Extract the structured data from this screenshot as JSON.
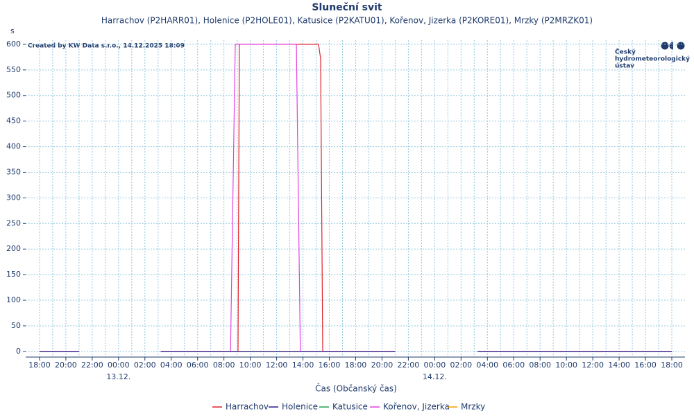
{
  "chart_data": {
    "type": "line",
    "title": "Sluneční svit",
    "subtitle": "Harrachov (P2HARR01), Holenice (P2HOLE01), Katusice (P2KATU01), Kořenov, Jizerka (P2KORE01), Mrzky (P2MRZK01)",
    "y_label": "s",
    "x_label": "Čas (Občanský čas)",
    "credit": "Created by KW Data s.r.o., 14.12.2025 18:09",
    "logo": [
      "Český",
      "hydrometeorologický",
      "ústav"
    ],
    "x": [
      0,
      3,
      6,
      9.2,
      14.5,
      14.86,
      15.07,
      15.17,
      19.5,
      19.8,
      21.18,
      21.34,
      21.5,
      27,
      30,
      33.25,
      48
    ],
    "series": [
      {
        "name": "Harrachov",
        "color": "#e0202a",
        "values": [
          0,
          0,
          null,
          0,
          0,
          0,
          0,
          600,
          600,
          600,
          600,
          572,
          0,
          0,
          null,
          0,
          0
        ]
      },
      {
        "name": "Holenice",
        "color": "#2a1a8c",
        "values": [
          0,
          0,
          null,
          0,
          0,
          0,
          0,
          0,
          0,
          0,
          0,
          0,
          0,
          0,
          null,
          0,
          0
        ]
      },
      {
        "name": "Katusice",
        "color": "#20a050",
        "values": [
          0,
          0,
          null,
          0,
          0,
          0,
          0,
          0,
          0,
          0,
          0,
          0,
          0,
          0,
          null,
          0,
          0
        ]
      },
      {
        "name": "Kořenov, Jizerka",
        "color": "#e040e0",
        "values": [
          0,
          0,
          null,
          0,
          0,
          600,
          600,
          600,
          600,
          0,
          0,
          0,
          0,
          0,
          null,
          0,
          0
        ]
      },
      {
        "name": "Mrzky",
        "color": "#f0a000",
        "values": [
          0,
          0,
          null,
          0,
          0,
          0,
          0,
          0,
          0,
          0,
          0,
          0,
          0,
          0,
          null,
          0,
          0
        ]
      }
    ],
    "xlim": [
      -1.05,
      49
    ],
    "xticks": [
      {
        "value": 0,
        "label": "18:00"
      },
      {
        "value": 2,
        "label": "20:00"
      },
      {
        "value": 4,
        "label": "22:00"
      },
      {
        "value": 6,
        "label": "00:00"
      },
      {
        "value": 8,
        "label": "02:00"
      },
      {
        "value": 10,
        "label": "04:00"
      },
      {
        "value": 12,
        "label": "06:00"
      },
      {
        "value": 14,
        "label": "08:00"
      },
      {
        "value": 16,
        "label": "10:00"
      },
      {
        "value": 18,
        "label": "12:00"
      },
      {
        "value": 20,
        "label": "14:00"
      },
      {
        "value": 22,
        "label": "16:00"
      },
      {
        "value": 24,
        "label": "18:00"
      },
      {
        "value": 26,
        "label": "20:00"
      },
      {
        "value": 28,
        "label": "22:00"
      },
      {
        "value": 30,
        "label": "00:00"
      },
      {
        "value": 32,
        "label": "02:00"
      },
      {
        "value": 34,
        "label": "04:00"
      },
      {
        "value": 36,
        "label": "06:00"
      },
      {
        "value": 38,
        "label": "08:00"
      },
      {
        "value": 40,
        "label": "10:00"
      },
      {
        "value": 42,
        "label": "12:00"
      },
      {
        "value": 44,
        "label": "14:00"
      },
      {
        "value": 46,
        "label": "16:00"
      },
      {
        "value": 48,
        "label": "18:00"
      }
    ],
    "date_labels": [
      {
        "value": 6,
        "label": "13.12."
      },
      {
        "value": 30,
        "label": "14.12."
      }
    ],
    "ylim": [
      -11,
      608
    ],
    "yticks": [
      0,
      50,
      100,
      150,
      200,
      250,
      300,
      350,
      400,
      450,
      500,
      550,
      600
    ],
    "grid": true,
    "legend": "bottom"
  }
}
